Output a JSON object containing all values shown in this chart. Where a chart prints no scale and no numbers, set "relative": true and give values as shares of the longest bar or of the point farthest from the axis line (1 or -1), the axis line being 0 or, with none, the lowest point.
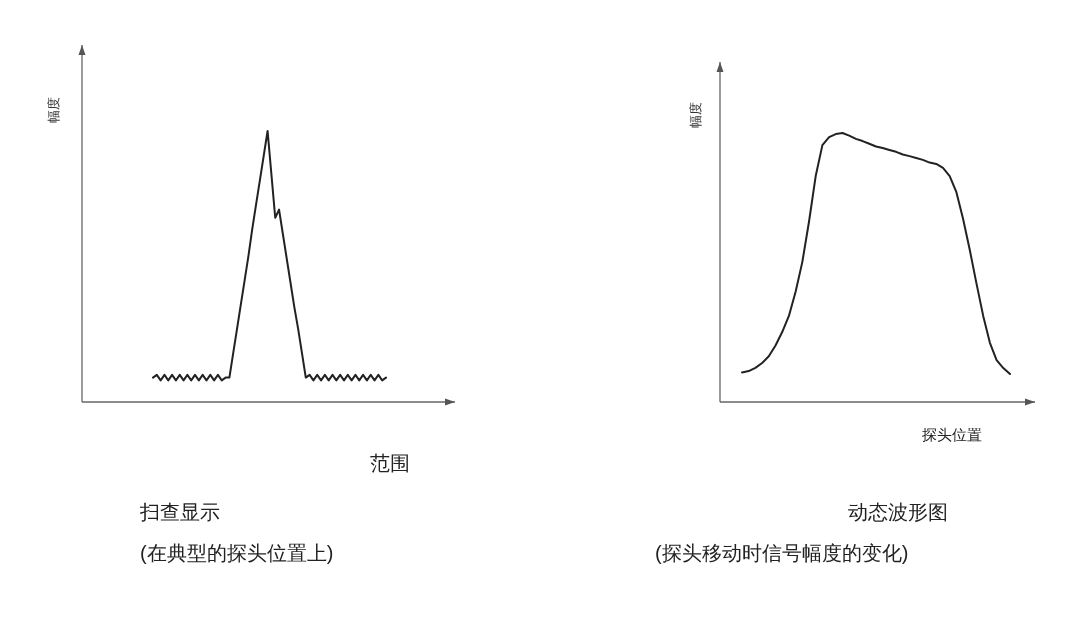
{
  "chart_data": [
    {
      "type": "line",
      "title": "扫查显示",
      "subtitle": "(在典型的探头位置上)",
      "xlabel": "范围",
      "ylabel": "幅度",
      "relative": true,
      "color": "#222222",
      "categories": [
        null,
        null,
        null,
        null,
        null,
        null,
        null,
        null,
        null,
        null,
        null,
        null,
        null,
        null,
        null,
        null,
        null,
        null,
        null,
        null,
        null,
        null,
        null,
        null,
        null,
        null,
        null,
        null,
        null,
        null,
        null,
        null,
        null,
        null,
        null,
        null,
        null,
        null,
        null,
        null,
        null,
        null,
        null,
        null,
        null,
        null,
        null,
        null,
        null,
        null,
        null,
        null,
        null,
        null,
        null,
        null,
        null,
        null,
        null,
        null,
        null,
        null
      ],
      "values": [
        0.09,
        0.1,
        0.08,
        0.1,
        0.08,
        0.1,
        0.08,
        0.1,
        0.08,
        0.1,
        0.08,
        0.1,
        0.08,
        0.1,
        0.08,
        0.1,
        0.08,
        0.1,
        0.08,
        0.09,
        0.09,
        0.18,
        0.27,
        0.36,
        0.45,
        0.54,
        0.64,
        0.73,
        0.82,
        0.91,
        1,
        0.84,
        0.68,
        0.71,
        0.62,
        0.53,
        0.44,
        0.35,
        0.27,
        0.18,
        0.09,
        0.1,
        0.08,
        0.1,
        0.08,
        0.1,
        0.08,
        0.1,
        0.08,
        0.1,
        0.08,
        0.1,
        0.08,
        0.1,
        0.08,
        0.1,
        0.08,
        0.1,
        0.08,
        0.1,
        0.08,
        0.09
      ]
    },
    {
      "type": "line",
      "title": "动态波形图",
      "subtitle": "(探头移动时信号幅度的变化)",
      "xlabel": "探头位置",
      "ylabel": "幅度",
      "relative": true,
      "color": "#222222",
      "categories": [
        null,
        null,
        null,
        null,
        null,
        null,
        null,
        null,
        null,
        null,
        null,
        null,
        null,
        null,
        null,
        null,
        null,
        null,
        null,
        null,
        null,
        null,
        null,
        null,
        null,
        null,
        null,
        null,
        null,
        null,
        null,
        null,
        null,
        null,
        null,
        null,
        null,
        null,
        null,
        null,
        null
      ],
      "values": [
        0.11,
        0.115,
        0.127,
        0.145,
        0.17,
        0.21,
        0.26,
        0.32,
        0.41,
        0.52,
        0.67,
        0.84,
        0.955,
        0.985,
        0.996,
        1,
        0.99,
        0.978,
        0.97,
        0.96,
        0.95,
        0.944,
        0.937,
        0.93,
        0.92,
        0.914,
        0.907,
        0.9,
        0.89,
        0.885,
        0.87,
        0.84,
        0.78,
        0.68,
        0.565,
        0.44,
        0.32,
        0.22,
        0.156,
        0.126,
        0.104
      ]
    }
  ]
}
